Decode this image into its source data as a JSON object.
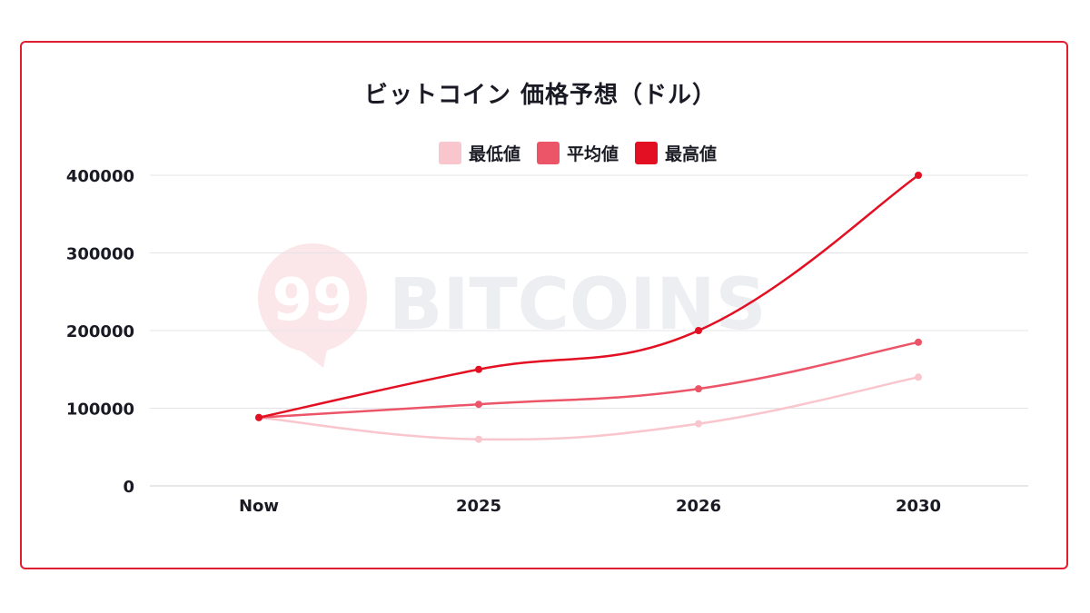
{
  "watermark": {
    "text": "BITCOINS",
    "logo_text": "99"
  },
  "colors": {
    "border": "#e11d2e",
    "grid": "#e4e4e8",
    "text": "#1a1a24"
  },
  "chart_data": {
    "type": "line",
    "title": "ビットコイン 価格予想（ドル）",
    "categories": [
      "Now",
      "2025",
      "2026",
      "2030"
    ],
    "ylim": [
      0,
      400000
    ],
    "yticks": [
      "0",
      "100000",
      "200000",
      "300000",
      "400000"
    ],
    "grid": true,
    "legend_position": "top-center",
    "series": [
      {
        "name": "最低値",
        "color": "#f9c6cd",
        "values": [
          88000,
          60000,
          80000,
          140000
        ]
      },
      {
        "name": "平均値",
        "color": "#ec5468",
        "values": [
          88000,
          105000,
          125000,
          185000
        ]
      },
      {
        "name": "最高値",
        "color": "#e30f22",
        "values": [
          88000,
          150000,
          200000,
          400000
        ]
      }
    ]
  }
}
